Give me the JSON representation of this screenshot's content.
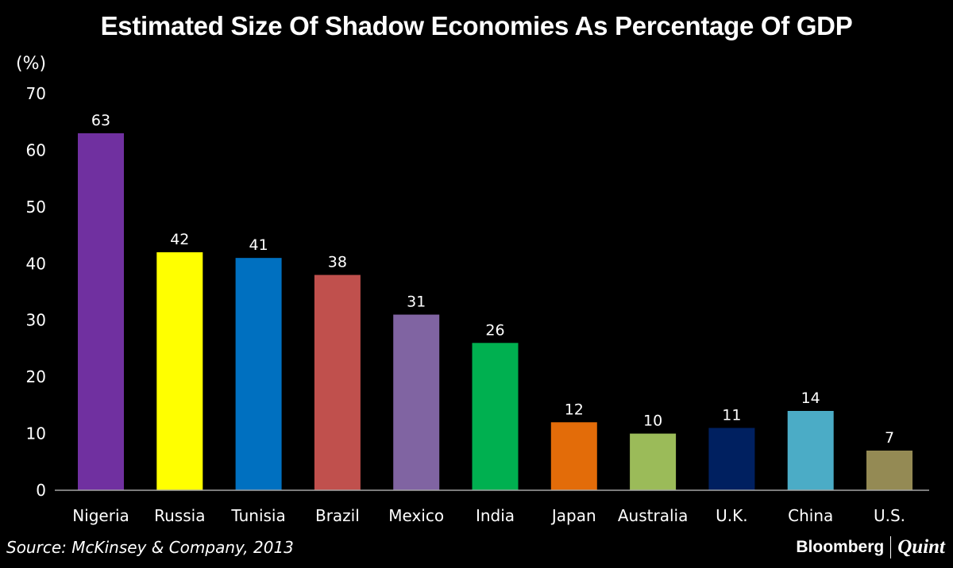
{
  "chart_data": {
    "type": "bar",
    "title": "Estimated Size Of Shadow Economies As Percentage Of GDP",
    "ylabel": "(%)",
    "xlabel": "",
    "ylim": [
      0,
      70
    ],
    "yticks": [
      0,
      10,
      20,
      30,
      40,
      50,
      60,
      70
    ],
    "grid": false,
    "categories": [
      "Nigeria",
      "Russia",
      "Tunisia",
      "Brazil",
      "Mexico",
      "India",
      "Japan",
      "Australia",
      "U.K.",
      "China",
      "U.S."
    ],
    "values": [
      63,
      42,
      41,
      38,
      31,
      26,
      12,
      10,
      11,
      14,
      7
    ],
    "colors": [
      "#7030a0",
      "#ffff00",
      "#0070c0",
      "#c0504d",
      "#8064a2",
      "#00b050",
      "#e36c09",
      "#9bbb59",
      "#002060",
      "#4bacc6",
      "#948a54"
    ]
  },
  "source": "Source: McKinsey & Company, 2013",
  "logo": {
    "left": "Bloomberg",
    "right": "Quint"
  }
}
